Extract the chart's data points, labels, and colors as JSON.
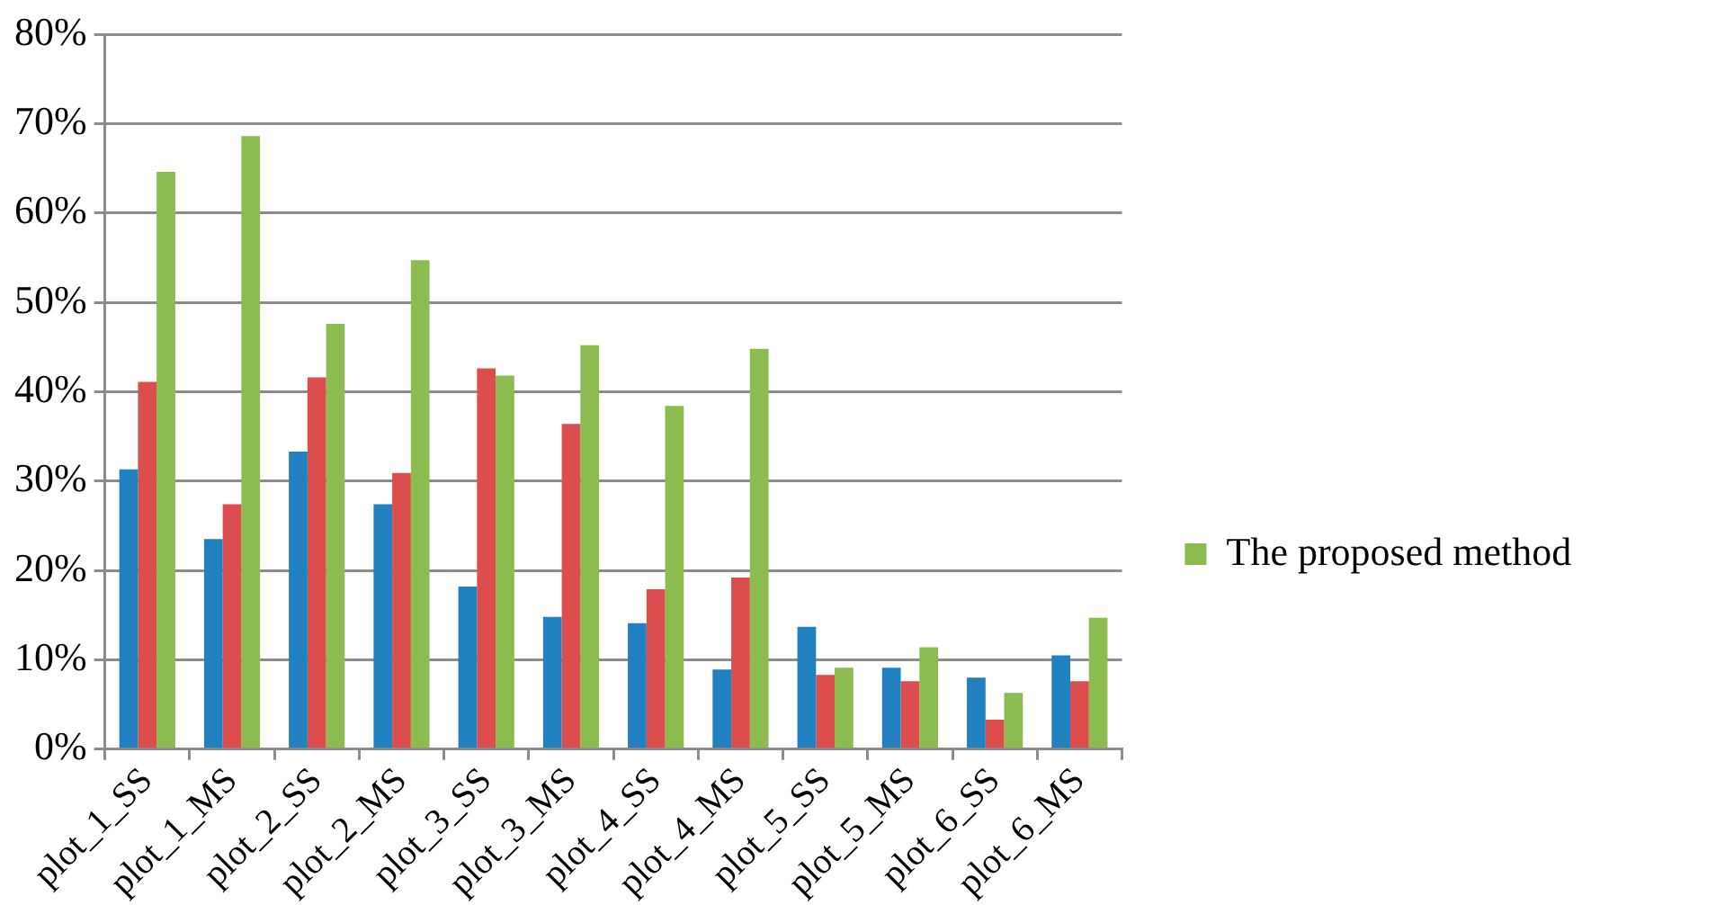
{
  "chart_data": {
    "type": "bar",
    "categories": [
      "plot_1_SS",
      "plot_1_MS",
      "plot_2_SS",
      "plot_2_MS",
      "plot_3_SS",
      "plot_3_MS",
      "plot_4_SS",
      "plot_4_MS",
      "plot_5_SS",
      "plot_5_MS",
      "plot_6_SS",
      "plot_6_MS"
    ],
    "series": [
      {
        "color": "#2181c0",
        "values": [
          31.3,
          23.5,
          33.3,
          27.4,
          18.2,
          14.8,
          14.1,
          8.9,
          13.7,
          9.1,
          8.0,
          10.5
        ]
      },
      {
        "color": "#dc4e4e",
        "values": [
          41.1,
          27.4,
          41.6,
          30.9,
          42.6,
          36.4,
          17.9,
          19.2,
          8.3,
          7.6,
          3.3,
          7.6
        ]
      },
      {
        "name": "The proposed method",
        "color": "#8cbb50",
        "values": [
          64.6,
          68.6,
          47.6,
          54.7,
          41.8,
          45.2,
          38.4,
          44.8,
          9.1,
          11.4,
          6.3,
          14.7
        ]
      }
    ],
    "ylim": [
      0,
      80
    ],
    "yticks": [
      {
        "value": 0,
        "label": "0%"
      },
      {
        "value": 10,
        "label": "10%"
      },
      {
        "value": 20,
        "label": "20%"
      },
      {
        "value": 30,
        "label": "30%"
      },
      {
        "value": 40,
        "label": "40%"
      },
      {
        "value": 50,
        "label": "50%"
      },
      {
        "value": 60,
        "label": "60%"
      },
      {
        "value": 70,
        "label": "70%"
      },
      {
        "value": 80,
        "label": "80%"
      }
    ],
    "grid": "y",
    "legend": "right"
  }
}
